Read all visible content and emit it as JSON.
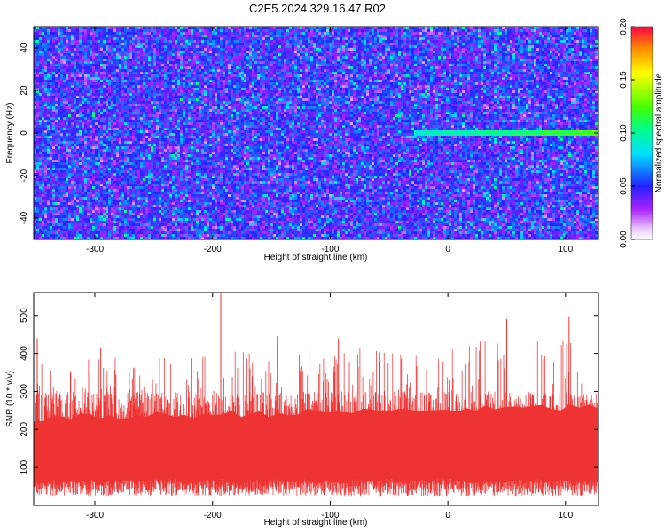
{
  "title": "C2E5.2024.329.16.47.R02",
  "chart_data": [
    {
      "type": "heatmap",
      "xlabel": "Height of straight line (km)",
      "ylabel": "Frequency (Hz)",
      "xlim": [
        -352,
        128
      ],
      "ylim": [
        -50,
        50
      ],
      "xticks": [
        -300,
        -200,
        -100,
        0,
        100
      ],
      "yticks": [
        -40,
        -20,
        0,
        20,
        40
      ],
      "colorbar": {
        "label": "Normalized spectral amplitude",
        "range": [
          0,
          0.2
        ],
        "ticks": [
          "0.00",
          "0.05",
          "0.10",
          "0.15",
          "0.20"
        ],
        "colors": [
          "#ffffff",
          "#dd88ff",
          "#8800ff",
          "#2222ff",
          "#00ffff",
          "#00ff00",
          "#ffff00",
          "#ff0000"
        ]
      },
      "background_level": 0.04,
      "signal_track": {
        "frequency": 0,
        "x_range": [
          -30,
          128
        ],
        "level": 0.11
      }
    },
    {
      "type": "area",
      "xlabel": "Height of straight line (km)",
      "ylabel": "SNR (10 * v/v)",
      "xlim": [
        -352,
        128
      ],
      "ylim": [
        0,
        560
      ],
      "xticks": [
        -300,
        -200,
        -100,
        0,
        100
      ],
      "yticks": [
        100,
        200,
        300,
        400,
        500
      ],
      "color": "#ee3333",
      "envelope": {
        "x": [
          -350,
          -300,
          -250,
          -200,
          -150,
          -100,
          -50,
          0,
          50,
          100,
          128
        ],
        "y": [
          380,
          390,
          400,
          410,
          400,
          410,
          420,
          430,
          440,
          450,
          450
        ]
      },
      "baseline_min": 50,
      "peaks": [
        {
          "x": -193,
          "y": 560
        },
        {
          "x": -349,
          "y": 440
        },
        {
          "x": -295,
          "y": 415
        },
        {
          "x": -145,
          "y": 445
        },
        {
          "x": -118,
          "y": 422
        },
        {
          "x": -93,
          "y": 440
        },
        {
          "x": 50,
          "y": 490
        },
        {
          "x": 103,
          "y": 498
        }
      ]
    }
  ]
}
